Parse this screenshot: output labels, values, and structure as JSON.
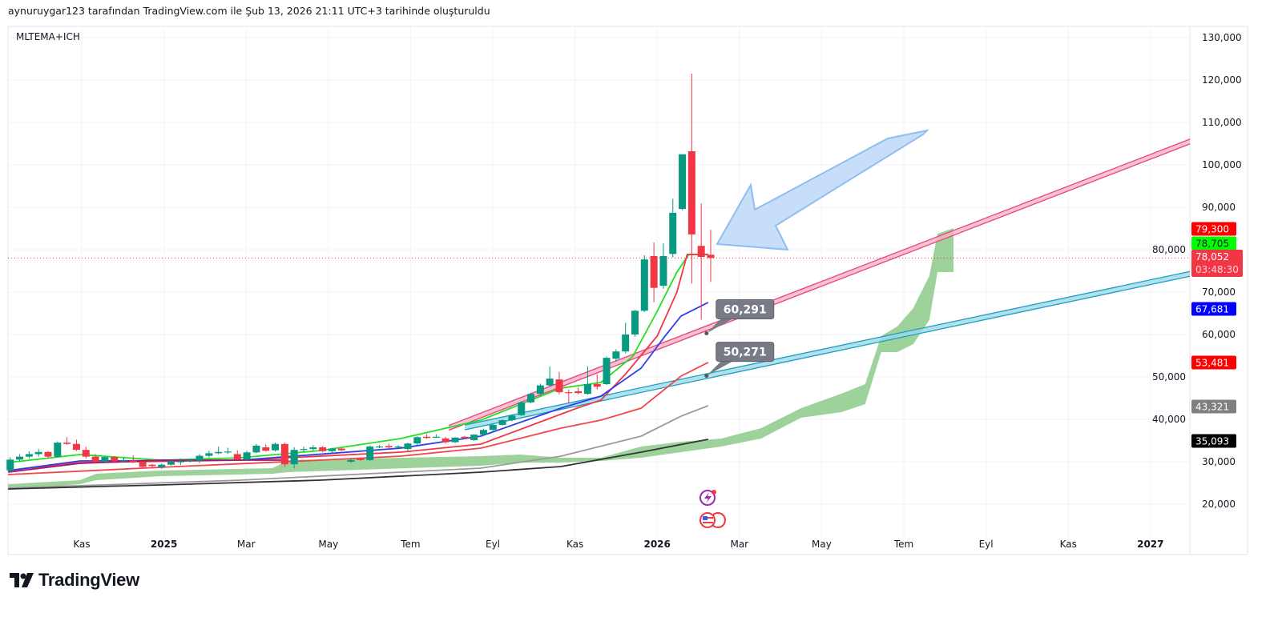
{
  "header": {
    "attribution": "aynuruygar123 tarafından TradingView.com ile Şub 13, 2026 21:11 UTC+3 tarihinde oluşturuldu"
  },
  "logo": {
    "text": "TradingView"
  },
  "chart_data": {
    "type": "candlestick",
    "title": "MLTEMA+ICH",
    "x_unit": "months since 2024-09-01",
    "ylim": [
      10000,
      136000
    ],
    "xlim": [
      0.2,
      28.96
    ],
    "grid": true,
    "y_ticks": [
      20000,
      30000,
      40000,
      50000,
      60000,
      70000,
      80000,
      90000,
      100000,
      110000,
      120000,
      130000
    ],
    "y_tick_labels": [
      "20,000",
      "30,000",
      "40,000",
      "50,000",
      "60,000",
      "70,000",
      "80,000",
      "90,000",
      "100,000",
      "110,000",
      "120,000",
      "130,000"
    ],
    "x_ticks": [
      {
        "label": "Kas",
        "m": 2
      },
      {
        "label": "2025",
        "m": 4,
        "bold": true
      },
      {
        "label": "Mar",
        "m": 6
      },
      {
        "label": "May",
        "m": 8
      },
      {
        "label": "Tem",
        "m": 10
      },
      {
        "label": "Eyl",
        "m": 12
      },
      {
        "label": "Kas",
        "m": 14
      },
      {
        "label": "2026",
        "m": 16,
        "bold": true
      },
      {
        "label": "Mar",
        "m": 18
      },
      {
        "label": "May",
        "m": 20
      },
      {
        "label": "Tem",
        "m": 22
      },
      {
        "label": "Eyl",
        "m": 24
      },
      {
        "label": "Kas",
        "m": 26
      },
      {
        "label": "2027",
        "m": 28,
        "bold": true
      }
    ],
    "candle_start_month": 0.26,
    "candle_step_month": 0.2303,
    "candles_ohlc": [
      [
        28000,
        31000,
        27500,
        30500
      ],
      [
        30500,
        31800,
        30000,
        31200
      ],
      [
        31200,
        32500,
        30800,
        31800
      ],
      [
        31800,
        33000,
        31200,
        32300
      ],
      [
        32300,
        32500,
        30800,
        31200
      ],
      [
        31200,
        34800,
        31000,
        34500
      ],
      [
        34500,
        35800,
        34000,
        34200
      ],
      [
        34200,
        35200,
        32500,
        32800
      ],
      [
        32800,
        33500,
        30800,
        31200
      ],
      [
        31200,
        31800,
        29600,
        30000
      ],
      [
        30000,
        31300,
        29800,
        31100
      ],
      [
        31100,
        31300,
        29800,
        30100
      ],
      [
        30100,
        31000,
        29900,
        30300
      ],
      [
        30300,
        31500,
        29700,
        29900
      ],
      [
        29900,
        30000,
        28500,
        28800
      ],
      [
        29300,
        29500,
        28400,
        29000
      ],
      [
        28700,
        29600,
        28300,
        29300
      ],
      [
        29300,
        30300,
        29100,
        30000
      ],
      [
        30000,
        30800,
        29300,
        30100
      ],
      [
        30100,
        30700,
        29800,
        30300
      ],
      [
        30300,
        31800,
        29700,
        31400
      ],
      [
        31400,
        32600,
        31000,
        32000
      ],
      [
        32000,
        33600,
        31800,
        32300
      ],
      [
        32300,
        33300,
        31900,
        32400
      ],
      [
        31800,
        32700,
        30300,
        30500
      ],
      [
        30500,
        32600,
        30300,
        32200
      ],
      [
        32200,
        34200,
        32000,
        33800
      ],
      [
        33400,
        34100,
        32400,
        32600
      ],
      [
        32700,
        34500,
        32400,
        34200
      ],
      [
        34200,
        34500,
        28800,
        29400
      ],
      [
        29400,
        33400,
        28400,
        32800
      ],
      [
        32800,
        33600,
        32200,
        33000
      ],
      [
        33000,
        33900,
        32500,
        33400
      ],
      [
        33400,
        33700,
        32200,
        32500
      ],
      [
        32500,
        33300,
        32200,
        33100
      ],
      [
        33100,
        33300,
        32500,
        32700
      ],
      [
        30000,
        30800,
        29700,
        30400
      ],
      [
        30700,
        31000,
        30200,
        30400
      ],
      [
        30400,
        33800,
        30200,
        33600
      ],
      [
        33500,
        34000,
        33200,
        33600
      ],
      [
        33700,
        34300,
        33000,
        33400
      ],
      [
        33500,
        33900,
        32900,
        33600
      ],
      [
        33000,
        34500,
        32600,
        34300
      ],
      [
        34300,
        36000,
        34000,
        35800
      ],
      [
        35900,
        36500,
        35400,
        35600
      ],
      [
        35800,
        36500,
        35600,
        35900
      ],
      [
        35500,
        35900,
        34300,
        34600
      ],
      [
        34600,
        35800,
        34400,
        35700
      ],
      [
        35900,
        36100,
        35300,
        35600
      ],
      [
        35100,
        36500,
        34900,
        36400
      ],
      [
        36400,
        37800,
        36200,
        37500
      ],
      [
        37500,
        39000,
        37300,
        38700
      ],
      [
        38700,
        40000,
        38500,
        39800
      ],
      [
        39800,
        41200,
        39500,
        40900
      ],
      [
        41000,
        44300,
        40800,
        44000
      ],
      [
        44000,
        46300,
        43800,
        46000
      ],
      [
        46000,
        48400,
        45500,
        48000
      ],
      [
        48000,
        52500,
        47800,
        49600
      ],
      [
        49400,
        51200,
        45900,
        46400
      ],
      [
        46400,
        47000,
        43800,
        46300
      ],
      [
        46600,
        47500,
        45900,
        46200
      ],
      [
        46000,
        52500,
        45800,
        48300
      ],
      [
        48300,
        50600,
        47000,
        47700
      ],
      [
        48300,
        54800,
        48100,
        54500
      ],
      [
        54300,
        56500,
        53600,
        56000
      ],
      [
        56000,
        62800,
        55600,
        60000
      ],
      [
        60000,
        65800,
        59500,
        65600
      ],
      [
        65600,
        78700,
        65300,
        77700
      ],
      [
        78500,
        81700,
        67600,
        71000
      ],
      [
        71500,
        81500,
        70800,
        78500
      ],
      [
        79000,
        92000,
        78200,
        88700
      ],
      [
        89600,
        102000,
        89300,
        102500
      ],
      [
        103200,
        121500,
        72000,
        83600
      ],
      [
        80900,
        90900,
        63500,
        78300
      ],
      [
        78800,
        84700,
        72400,
        78052
      ]
    ],
    "last_price": 78052,
    "countdown": "03:48:30",
    "series": [
      {
        "name": "EMA green",
        "color": "#22e01f",
        "points": [
          [
            0.21,
            29810
          ],
          [
            1.96,
            31700
          ],
          [
            3.91,
            30380
          ],
          [
            5.86,
            30940
          ],
          [
            7.81,
            32640
          ],
          [
            9.76,
            35470
          ],
          [
            11.71,
            39810
          ],
          [
            12.68,
            43580
          ],
          [
            13.66,
            47360
          ],
          [
            14.63,
            48680
          ],
          [
            15.41,
            54900
          ],
          [
            15.99,
            65280
          ],
          [
            16.48,
            74720
          ],
          [
            16.77,
            78870
          ],
          [
            17.24,
            78870
          ]
        ]
      },
      {
        "name": "EMA red fast",
        "color": "#f23645",
        "points": [
          [
            0.21,
            27920
          ],
          [
            1.96,
            29810
          ],
          [
            5.86,
            30380
          ],
          [
            9.76,
            32260
          ],
          [
            11.71,
            34150
          ],
          [
            13.27,
            39810
          ],
          [
            14.05,
            42640
          ],
          [
            14.63,
            44530
          ],
          [
            15.22,
            50570
          ],
          [
            16.0,
            59620
          ],
          [
            16.48,
            70000
          ],
          [
            16.73,
            78870
          ],
          [
            17.24,
            78870
          ]
        ]
      },
      {
        "name": "EMA blue",
        "color": "#2f3ee8",
        "points": [
          [
            0.21,
            27920
          ],
          [
            1.96,
            30190
          ],
          [
            5.86,
            30380
          ],
          [
            9.76,
            33210
          ],
          [
            11.71,
            36040
          ],
          [
            13.66,
            42640
          ],
          [
            14.63,
            45470
          ],
          [
            15.61,
            52080
          ],
          [
            16.19,
            59620
          ],
          [
            16.58,
            64340
          ],
          [
            17.24,
            67550
          ]
        ]
      },
      {
        "name": "EMA purple",
        "color": "#9c1c6b",
        "points": [
          [
            0.21,
            27550
          ],
          [
            1.96,
            29620
          ],
          [
            3.91,
            30380
          ],
          [
            7.03,
            30380
          ]
        ]
      },
      {
        "name": "EMA red slow",
        "color": "#f0484a",
        "points": [
          [
            0.21,
            26980
          ],
          [
            3.91,
            28680
          ],
          [
            7.81,
            30380
          ],
          [
            9.76,
            31320
          ],
          [
            11.71,
            33210
          ],
          [
            13.66,
            37930
          ],
          [
            14.63,
            39810
          ],
          [
            15.61,
            42640
          ],
          [
            16.58,
            50190
          ],
          [
            17.24,
            53400
          ]
        ]
      },
      {
        "name": "EMA gray",
        "color": "#9a9a9a",
        "points": [
          [
            0.21,
            23770
          ],
          [
            5.86,
            25660
          ],
          [
            9.76,
            27550
          ],
          [
            11.71,
            28490
          ],
          [
            13.66,
            31320
          ],
          [
            15.61,
            36040
          ],
          [
            16.58,
            40750
          ],
          [
            17.24,
            43210
          ]
        ]
      },
      {
        "name": "EMA black",
        "color": "#333333",
        "points": [
          [
            0.21,
            23590
          ],
          [
            3.91,
            24530
          ],
          [
            7.81,
            25660
          ],
          [
            11.71,
            27550
          ],
          [
            13.66,
            28870
          ],
          [
            15.61,
            32260
          ],
          [
            17.24,
            35280
          ]
        ]
      }
    ],
    "trendlines": [
      {
        "name": "pink channel",
        "color": "#e8457a",
        "fill": "#f7b3c8",
        "from": [
          10.93,
          38000
        ],
        "to": [
          28.96,
          105500
        ]
      },
      {
        "name": "cyan channel",
        "color": "#1aa0c0",
        "fill": "#9fd8e8",
        "from": [
          11.32,
          38100
        ],
        "to": [
          28.96,
          74300
        ]
      }
    ],
    "ichimoku_cloud": {
      "color": "#7cc47a",
      "points": [
        [
          0.21,
          24720,
          23400
        ],
        [
          1.96,
          25660,
          24720
        ],
        [
          2.35,
          27170,
          25660
        ],
        [
          3.91,
          27920,
          26600
        ],
        [
          6.64,
          28490,
          27170
        ],
        [
          7.03,
          30380,
          27550
        ],
        [
          11.71,
          31320,
          29060
        ],
        [
          12.68,
          31700,
          29810
        ],
        [
          13.66,
          30940,
          29810
        ],
        [
          14.63,
          30940,
          30190
        ],
        [
          15.61,
          33590,
          30940
        ],
        [
          16.58,
          34720,
          32260
        ],
        [
          17.56,
          35470,
          33590
        ],
        [
          18.53,
          37930,
          35470
        ],
        [
          19.5,
          42640,
          40380
        ],
        [
          20.48,
          46040,
          41700
        ],
        [
          21.06,
          48300,
          43580
        ],
        [
          21.45,
          59620,
          55850
        ],
        [
          21.84,
          61890,
          55850
        ],
        [
          22.23,
          66230,
          57740
        ],
        [
          22.62,
          73770,
          63400
        ],
        [
          22.82,
          83750,
          74720
        ],
        [
          23.21,
          85070,
          74720
        ]
      ]
    },
    "callouts": [
      {
        "text": "60,291",
        "m": 17.2,
        "price": 60291
      },
      {
        "text": "50,271",
        "m": 17.2,
        "price": 50271
      }
    ],
    "price_labels": [
      {
        "text": "79,300",
        "price": 79300,
        "bg": "#ff0000",
        "fg": "#ffffff",
        "slot": 0
      },
      {
        "text": "78,705",
        "price": 78705,
        "bg": "#00ff00",
        "fg": "#131722",
        "slot": 1
      },
      {
        "text": "78,052",
        "sub": "03:48:30",
        "price": 78052,
        "bg": "#f23645",
        "fg": "#ffffff",
        "slot": 2
      },
      {
        "text": "67,681",
        "price": 67681,
        "bg": "#0000ff",
        "fg": "#ffffff",
        "slot": 3
      },
      {
        "text": "53,481",
        "price": 53481,
        "bg": "#ff0000",
        "fg": "#ffffff",
        "slot": 4
      },
      {
        "text": "43,321",
        "price": 43321,
        "bg": "#808080",
        "fg": "#ffffff",
        "slot": 5
      },
      {
        "text": "35,093",
        "price": 35093,
        "bg": "#000000",
        "fg": "#ffffff",
        "slot": 6
      }
    ],
    "colors": {
      "up": "#089981",
      "down": "#f23645",
      "grid": "#f0f3fa"
    }
  }
}
